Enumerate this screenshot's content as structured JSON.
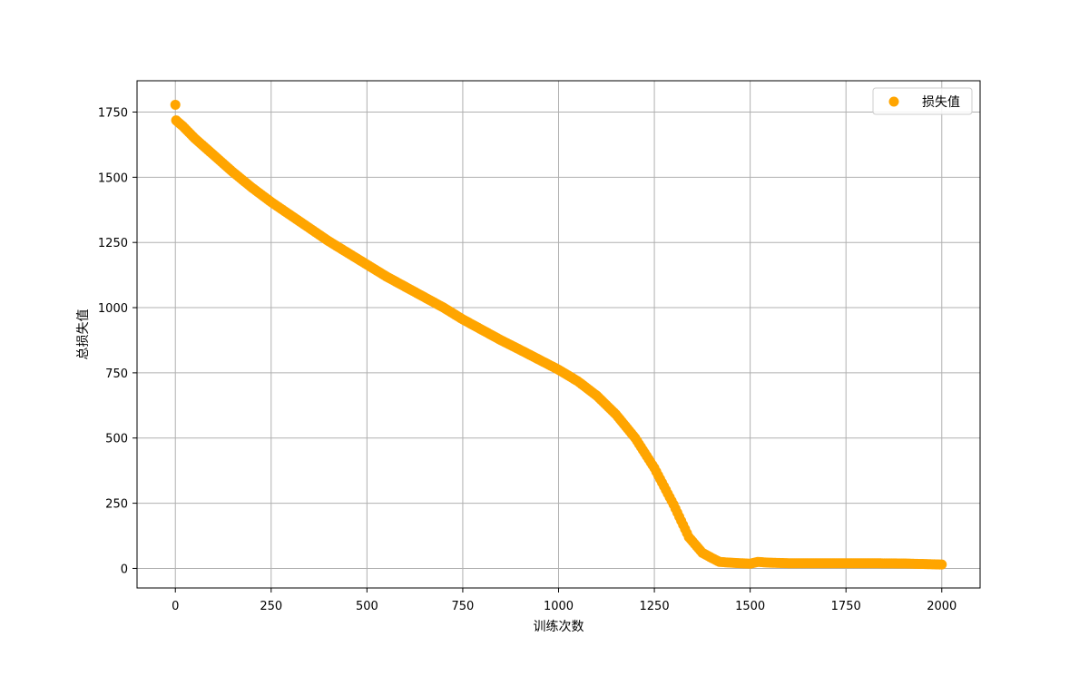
{
  "chart_data": {
    "type": "scatter",
    "title": "",
    "xlabel": "训练次数",
    "ylabel": "总损失值",
    "xlim": [
      -100,
      2100
    ],
    "ylim": [
      -75,
      1870
    ],
    "xticks": [
      0,
      250,
      500,
      750,
      1000,
      1250,
      1500,
      1750,
      2000
    ],
    "yticks": [
      0,
      250,
      500,
      750,
      1000,
      1250,
      1500,
      1750
    ],
    "grid": true,
    "legend_position": "top-right",
    "series": [
      {
        "name": "损失值",
        "color": "#FFA500",
        "anchors": [
          [
            0,
            1778
          ],
          [
            2,
            1718
          ],
          [
            20,
            1695
          ],
          [
            50,
            1650
          ],
          [
            100,
            1585
          ],
          [
            150,
            1520
          ],
          [
            200,
            1460
          ],
          [
            250,
            1405
          ],
          [
            300,
            1355
          ],
          [
            350,
            1305
          ],
          [
            400,
            1255
          ],
          [
            450,
            1210
          ],
          [
            500,
            1165
          ],
          [
            550,
            1120
          ],
          [
            600,
            1080
          ],
          [
            650,
            1040
          ],
          [
            700,
            1000
          ],
          [
            750,
            955
          ],
          [
            800,
            915
          ],
          [
            850,
            875
          ],
          [
            900,
            838
          ],
          [
            950,
            800
          ],
          [
            1000,
            762
          ],
          [
            1050,
            718
          ],
          [
            1100,
            662
          ],
          [
            1150,
            590
          ],
          [
            1200,
            500
          ],
          [
            1250,
            385
          ],
          [
            1300,
            245
          ],
          [
            1340,
            120
          ],
          [
            1375,
            60
          ],
          [
            1400,
            40
          ],
          [
            1420,
            25
          ],
          [
            1450,
            22
          ],
          [
            1500,
            18
          ],
          [
            1520,
            25
          ],
          [
            1550,
            22
          ],
          [
            1600,
            20
          ],
          [
            1700,
            20
          ],
          [
            1800,
            20
          ],
          [
            1900,
            19
          ],
          [
            1950,
            17
          ],
          [
            2000,
            15
          ]
        ]
      }
    ]
  }
}
